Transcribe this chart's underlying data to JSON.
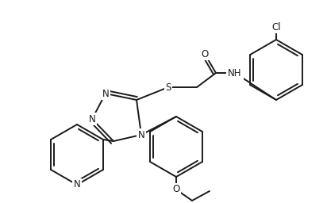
{
  "bg_color": "#ffffff",
  "line_color": "#1a1a1a",
  "line_width": 1.4,
  "font_size": 8.5,
  "figsize": [
    4.12,
    2.56
  ],
  "dpi": 100,
  "xlim": [
    0,
    412
  ],
  "ylim": [
    0,
    256
  ]
}
